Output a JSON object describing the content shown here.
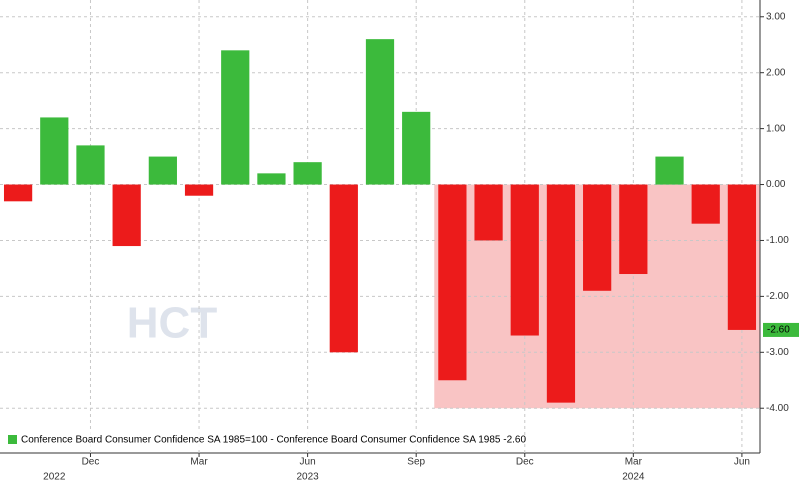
{
  "chart_data": {
    "type": "bar",
    "categories": [
      null,
      null,
      "Dec",
      null,
      null,
      "Mar",
      null,
      null,
      "Jun",
      null,
      null,
      "Sep",
      null,
      null,
      "Dec",
      null,
      null,
      "Mar",
      null,
      null,
      "Jun"
    ],
    "category_years": [
      null,
      "2022",
      null,
      null,
      null,
      null,
      null,
      null,
      "2023",
      null,
      null,
      null,
      null,
      null,
      null,
      null,
      null,
      "2024",
      null,
      null,
      null
    ],
    "series": [
      {
        "name": "Conference Board Consumer Confidence SA 1985=100 - Conference Board Consumer Confidence SA 1985  -2.60",
        "color": "#3cba3c",
        "values": [
          -0.3,
          1.2,
          0.7,
          -1.1,
          0.5,
          -0.2,
          2.4,
          0.2,
          0.4,
          -3.0,
          2.6,
          1.3,
          -3.5,
          -1.0,
          -2.7,
          -3.9,
          -1.9,
          -1.6,
          0.5,
          -0.7,
          -2.6
        ]
      }
    ],
    "negative_color": "#ec1b1b",
    "ylim": [
      -4.3,
      3.3
    ],
    "yticks": [
      {
        "value": 3,
        "label": "3.00"
      },
      {
        "value": 2,
        "label": "2.00"
      },
      {
        "value": 1,
        "label": "1.00"
      },
      {
        "value": 0,
        "label": "0.00"
      },
      {
        "value": -1,
        "label": "-1.00"
      },
      {
        "value": -2,
        "label": "-2.00"
      },
      {
        "value": -3,
        "label": "-3.00"
      },
      {
        "value": -4,
        "label": "-4.00"
      }
    ],
    "last_value": {
      "value": -2.6,
      "label": "-2.60"
    },
    "shade": {
      "from": 12,
      "to": 20,
      "y": [
        -4,
        0
      ],
      "color": "#f9c4c4"
    },
    "watermark": "HCT",
    "grid": true
  }
}
